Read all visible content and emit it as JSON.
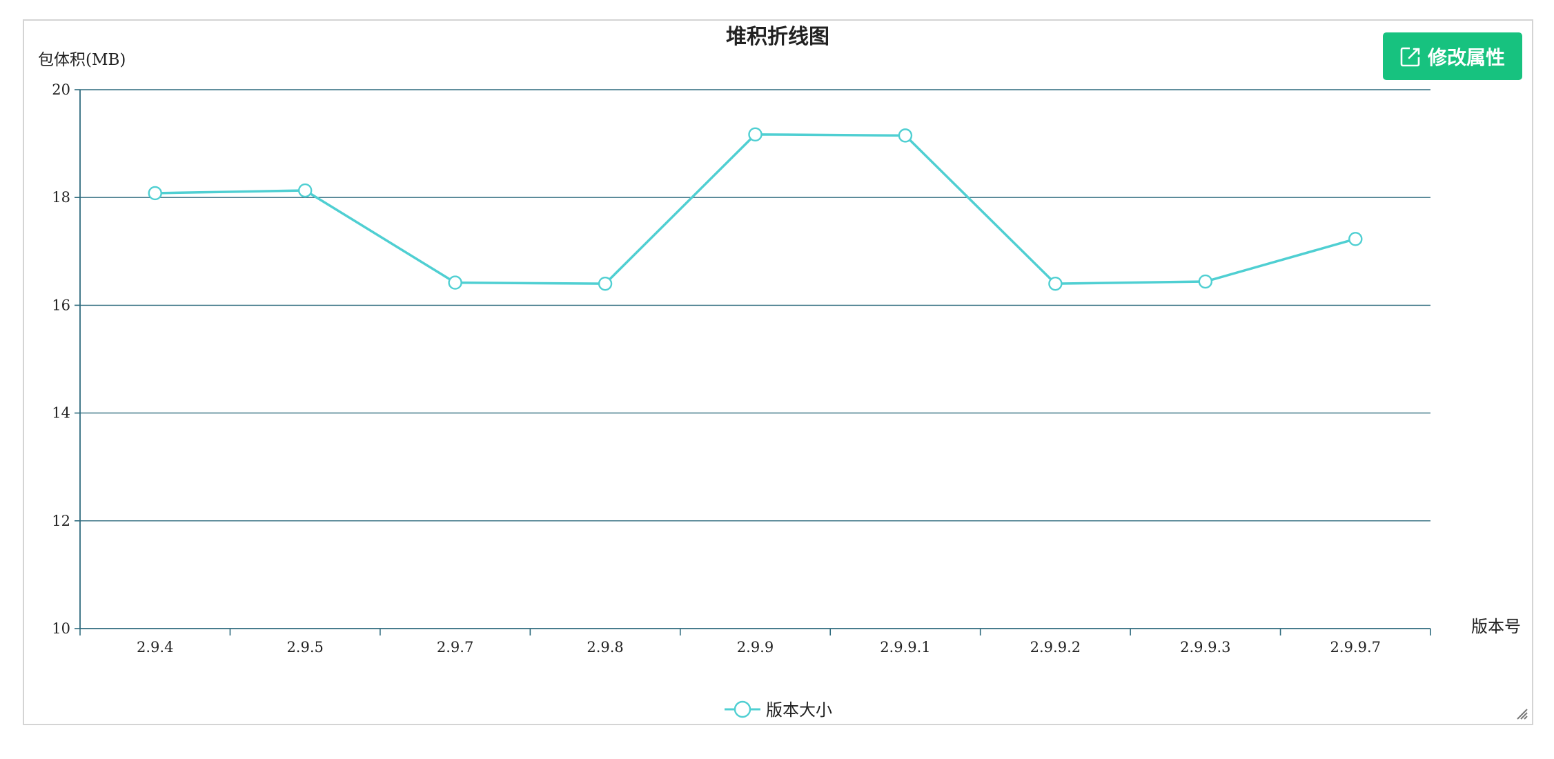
{
  "chart_data": {
    "type": "line",
    "title": "堆积折线图",
    "ylabel": "包体积(MB)",
    "xlabel": "版本号",
    "categories": [
      "2.9.4",
      "2.9.5",
      "2.9.7",
      "2.9.8",
      "2.9.9",
      "2.9.9.1",
      "2.9.9.2",
      "2.9.9.3",
      "2.9.9.7"
    ],
    "ylim": [
      10,
      20
    ],
    "yticks": [
      10,
      12,
      14,
      16,
      18,
      20
    ],
    "series": [
      {
        "name": "版本大小",
        "values": [
          18.08,
          18.13,
          16.42,
          16.4,
          19.17,
          19.15,
          16.4,
          16.44,
          17.23
        ]
      }
    ],
    "grid": true,
    "legend_position": "bottom-center"
  },
  "toolbar": {
    "edit_label": "修改属性",
    "edit_icon": "edit-icon"
  },
  "colors": {
    "title": "#1a87c9",
    "series": "#4fcfd2",
    "axis": "#2d6a7d",
    "button": "#17c27f"
  }
}
